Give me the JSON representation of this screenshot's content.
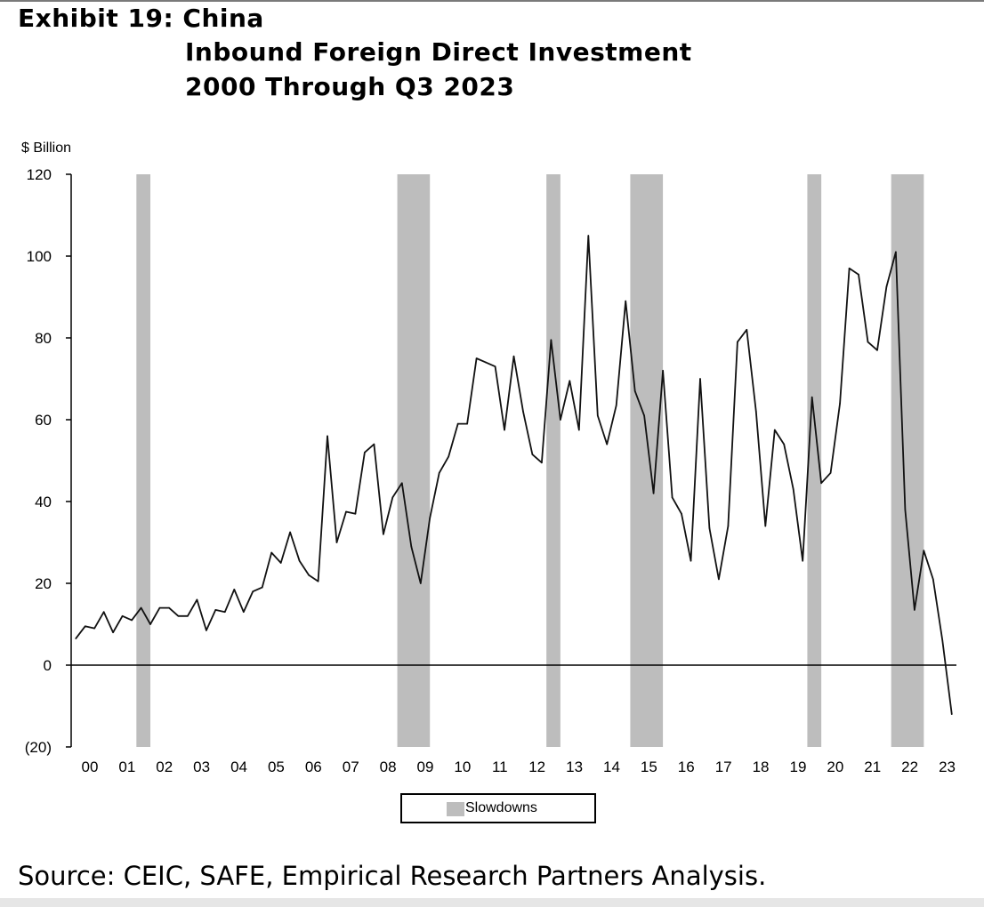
{
  "header": {
    "exhibit": "Exhibit 19: China",
    "subtitle_line1": "Inbound Foreign Direct Investment",
    "subtitle_line2": "2000 Through Q3 2023"
  },
  "source": "Source: CEIC, SAFE, Empirical Research Partners Analysis.",
  "chart_data": {
    "type": "line",
    "title": "Exhibit 19: China Inbound Foreign Direct Investment 2000 Through Q3 2023",
    "ylabel": "$ Billion",
    "xlabel": "",
    "ylim": [
      -20,
      120
    ],
    "yticks": [
      -20,
      0,
      20,
      40,
      60,
      80,
      100,
      120
    ],
    "ytick_labels": [
      "(20)",
      "0",
      "20",
      "40",
      "60",
      "80",
      "100",
      "120"
    ],
    "xtick_labels": [
      "00",
      "01",
      "02",
      "03",
      "04",
      "05",
      "06",
      "07",
      "08",
      "09",
      "10",
      "11",
      "12",
      "13",
      "14",
      "15",
      "16",
      "17",
      "18",
      "19",
      "20",
      "21",
      "22",
      "23"
    ],
    "x_start": 2000.0,
    "x_step": 0.25,
    "grid": false,
    "legend_placement": "bottom-center",
    "legend": [
      "Slowdowns"
    ],
    "slowdowns": [
      [
        2001.75,
        2002.125
      ],
      [
        2008.75,
        2009.625
      ],
      [
        2012.75,
        2013.125
      ],
      [
        2015.0,
        2015.875
      ],
      [
        2019.75,
        2020.125
      ],
      [
        2022.0,
        2022.875
      ]
    ],
    "series": [
      {
        "name": "Inbound FDI ($ Billion)",
        "values": [
          6.5,
          9.5,
          9,
          13,
          8,
          12,
          11,
          14,
          10,
          14,
          14,
          12,
          12,
          16,
          8.5,
          13.5,
          13,
          18.5,
          13,
          18,
          19,
          27.5,
          25,
          32.5,
          25.5,
          22,
          20.5,
          56,
          30,
          37.5,
          37,
          52,
          54,
          32,
          41,
          44.5,
          29,
          20,
          36,
          47,
          51,
          59,
          59,
          75,
          74,
          73,
          57.5,
          75.5,
          62,
          51.5,
          49.5,
          79.5,
          60,
          69.5,
          57.5,
          105,
          61,
          54,
          63.5,
          89,
          67,
          61,
          42,
          72,
          41,
          37,
          25.5,
          70,
          33.5,
          21,
          34,
          79,
          82,
          62,
          34,
          57.5,
          54,
          43,
          25.5,
          65.5,
          44.5,
          47,
          64,
          97,
          95.5,
          79,
          77,
          92.5,
          101,
          38,
          13.5,
          28,
          21,
          6,
          -12
        ]
      }
    ]
  }
}
